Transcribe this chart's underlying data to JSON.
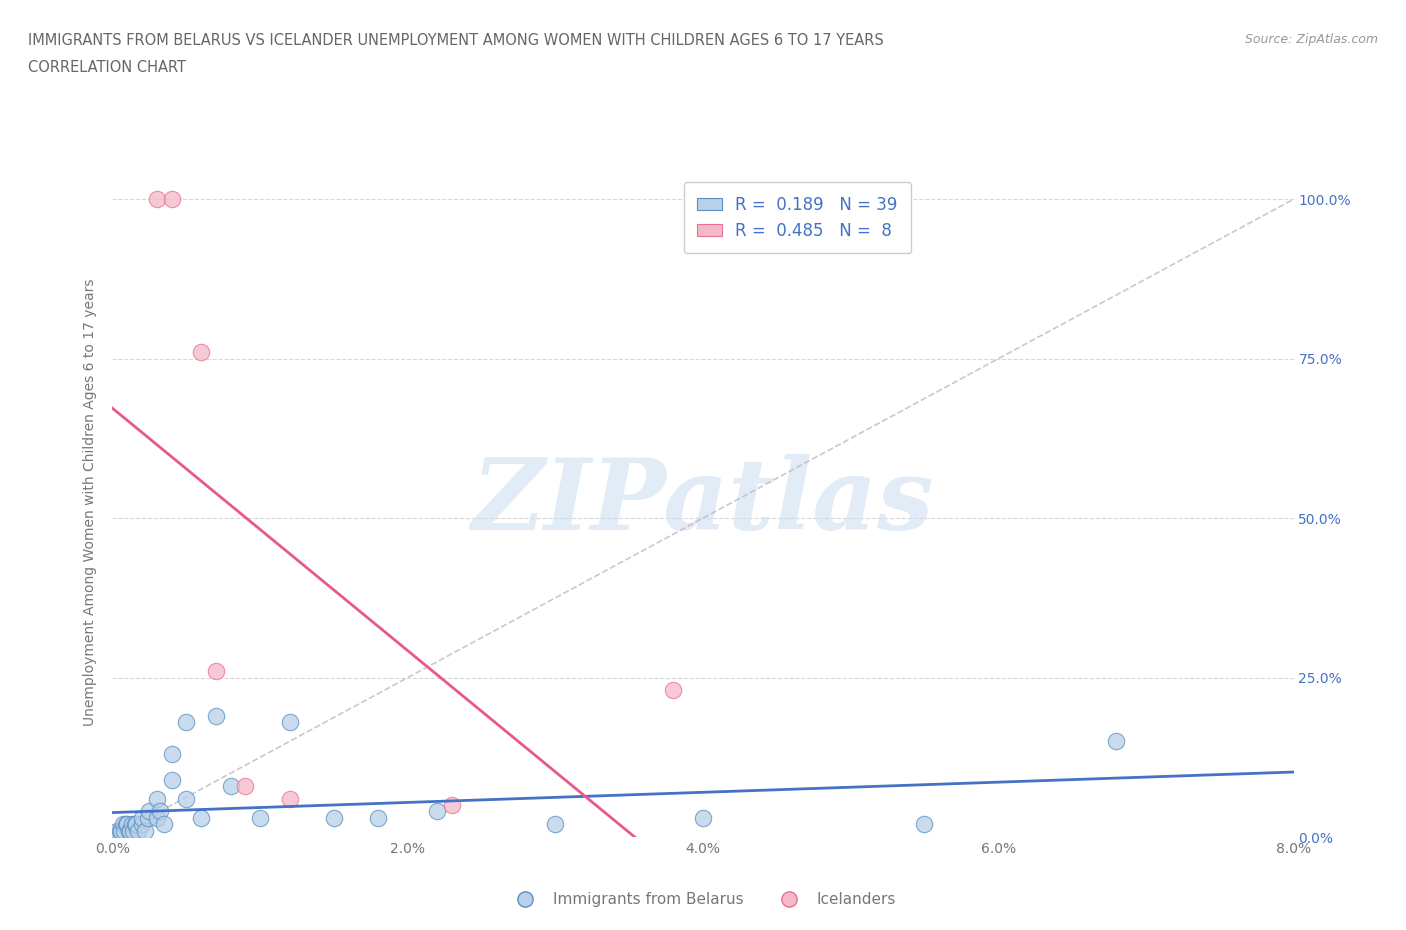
{
  "title_line1": "IMMIGRANTS FROM BELARUS VS ICELANDER UNEMPLOYMENT AMONG WOMEN WITH CHILDREN AGES 6 TO 17 YEARS",
  "title_line2": "CORRELATION CHART",
  "source_text": "Source: ZipAtlas.com",
  "ylabel": "Unemployment Among Women with Children Ages 6 to 17 years",
  "xlim": [
    0.0,
    0.08
  ],
  "ylim": [
    0.0,
    1.05
  ],
  "xticks": [
    0.0,
    0.02,
    0.04,
    0.06,
    0.08
  ],
  "xticklabels": [
    "0.0%",
    "2.0%",
    "4.0%",
    "6.0%",
    "8.0%"
  ],
  "yticks": [
    0.0,
    0.25,
    0.5,
    0.75,
    1.0
  ],
  "yticklabels": [
    "0.0%",
    "25.0%",
    "50.0%",
    "75.0%",
    "100.0%"
  ],
  "blue_fill_color": "#b8d0e8",
  "blue_edge_color": "#5b8ec4",
  "blue_line_color": "#4472c4",
  "pink_fill_color": "#f4b8c8",
  "pink_edge_color": "#e87090",
  "pink_line_color": "#e8588a",
  "r_blue": 0.189,
  "n_blue": 39,
  "r_pink": 0.485,
  "n_pink": 8,
  "blue_scatter_x": [
    0.0003,
    0.0005,
    0.0006,
    0.0007,
    0.0008,
    0.0009,
    0.001,
    0.0011,
    0.0012,
    0.0013,
    0.0014,
    0.0015,
    0.0016,
    0.0017,
    0.002,
    0.002,
    0.0022,
    0.0024,
    0.0025,
    0.003,
    0.003,
    0.0032,
    0.0035,
    0.004,
    0.004,
    0.005,
    0.005,
    0.006,
    0.007,
    0.008,
    0.01,
    0.012,
    0.015,
    0.018,
    0.022,
    0.03,
    0.04,
    0.055,
    0.068
  ],
  "blue_scatter_y": [
    0.01,
    0.01,
    0.01,
    0.02,
    0.01,
    0.02,
    0.02,
    0.01,
    0.01,
    0.02,
    0.01,
    0.02,
    0.02,
    0.01,
    0.02,
    0.03,
    0.01,
    0.03,
    0.04,
    0.03,
    0.06,
    0.04,
    0.02,
    0.09,
    0.13,
    0.06,
    0.18,
    0.03,
    0.19,
    0.08,
    0.03,
    0.18,
    0.03,
    0.03,
    0.04,
    0.02,
    0.03,
    0.02,
    0.15
  ],
  "pink_scatter_x": [
    0.003,
    0.004,
    0.006,
    0.007,
    0.009,
    0.012,
    0.023,
    0.038
  ],
  "pink_scatter_y": [
    1.0,
    1.0,
    0.76,
    0.26,
    0.08,
    0.06,
    0.05,
    0.23
  ],
  "ref_line_color": "#c0b8c8",
  "watermark_text": "ZIPatlas",
  "watermark_color": "#cde0f0",
  "background_color": "#ffffff",
  "grid_color": "#d8d8d8",
  "title_color": "#666666",
  "axis_label_color": "#777777",
  "tick_color": "#4472c4",
  "source_color": "#999999"
}
